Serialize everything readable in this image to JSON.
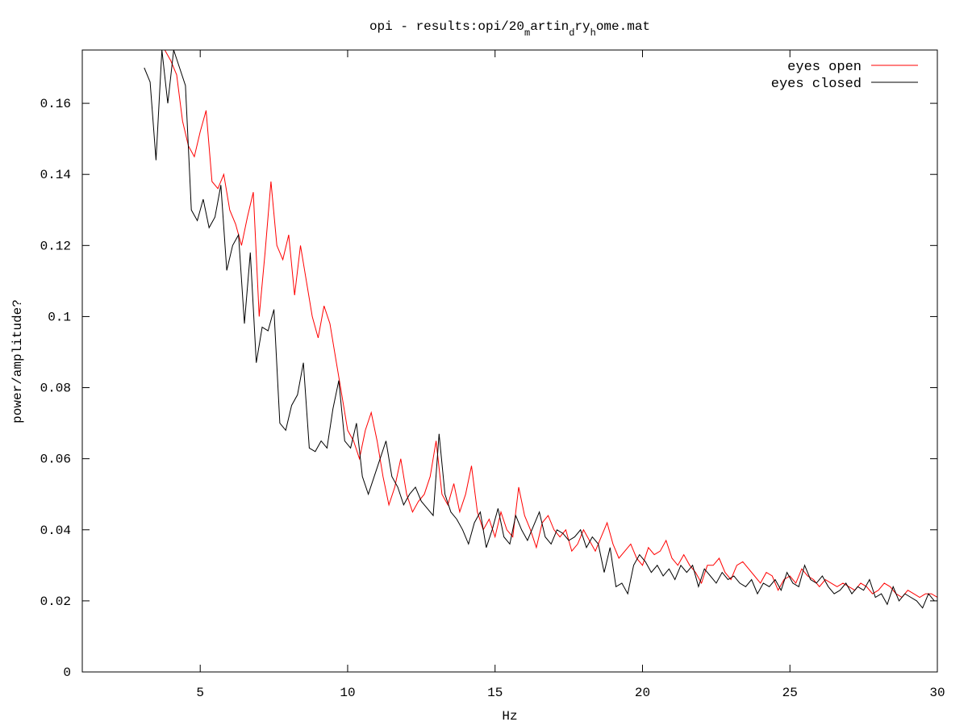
{
  "chart_data": {
    "type": "line",
    "title": "opi - results:opi/20_martin_dry_home.mat",
    "title_parts": {
      "base": "opi - results:opi/20",
      "sub1": "m",
      "mid1": "artin",
      "sub2": "d",
      "mid2": "ry",
      "sub3": "h",
      "tail": "ome.mat"
    },
    "xlabel": "Hz",
    "ylabel": "power/amplitude?",
    "xlim": [
      1,
      30
    ],
    "ylim": [
      0,
      0.175
    ],
    "xticks": [
      5,
      10,
      15,
      20,
      25,
      30
    ],
    "yticks": [
      0,
      0.02,
      0.04,
      0.06,
      0.08,
      0.1,
      0.12,
      0.14,
      0.16
    ],
    "ytick_labels": [
      "0",
      "0.02",
      "0.04",
      "0.06",
      "0.08",
      "0.1",
      "0.12",
      "0.14",
      "0.16"
    ],
    "xtick_labels": [
      "5",
      "10",
      "15",
      "20",
      "25",
      "30"
    ],
    "grid": false,
    "legend_position": "top-right",
    "colors": {
      "eyes_open": "#ff0000",
      "eyes_closed": "#000000"
    },
    "series": [
      {
        "name": "eyes open",
        "color": "#ff0000",
        "x": [
          3.2,
          3.4,
          3.6,
          3.8,
          4.0,
          4.2,
          4.4,
          4.6,
          4.8,
          5.0,
          5.2,
          5.4,
          5.6,
          5.8,
          6.0,
          6.2,
          6.4,
          6.6,
          6.8,
          7.0,
          7.2,
          7.4,
          7.6,
          7.8,
          8.0,
          8.2,
          8.4,
          8.6,
          8.8,
          9.0,
          9.2,
          9.4,
          9.6,
          9.8,
          10.0,
          10.2,
          10.4,
          10.6,
          10.8,
          11.0,
          11.2,
          11.4,
          11.6,
          11.8,
          12.0,
          12.2,
          12.4,
          12.6,
          12.8,
          13.0,
          13.2,
          13.4,
          13.6,
          13.8,
          14.0,
          14.2,
          14.4,
          14.6,
          14.8,
          15.0,
          15.2,
          15.4,
          15.6,
          15.8,
          16.0,
          16.2,
          16.4,
          16.6,
          16.8,
          17.0,
          17.2,
          17.4,
          17.6,
          17.8,
          18.0,
          18.2,
          18.4,
          18.6,
          18.8,
          19.0,
          19.2,
          19.4,
          19.6,
          19.8,
          20.0,
          20.2,
          20.4,
          20.6,
          20.8,
          21.0,
          21.2,
          21.4,
          21.6,
          21.8,
          22.0,
          22.2,
          22.4,
          22.6,
          22.8,
          23.0,
          23.2,
          23.4,
          23.6,
          23.8,
          24.0,
          24.2,
          24.4,
          24.6,
          24.8,
          25.0,
          25.2,
          25.4,
          25.6,
          25.8,
          26.0,
          26.2,
          26.4,
          26.6,
          26.8,
          27.0,
          27.2,
          27.4,
          27.6,
          27.8,
          28.0,
          28.2,
          28.4,
          28.6,
          28.8,
          29.0,
          29.2,
          29.4,
          29.6,
          29.8,
          30.0
        ],
        "values": [
          0.19,
          0.18,
          0.178,
          0.175,
          0.172,
          0.168,
          0.155,
          0.148,
          0.145,
          0.152,
          0.158,
          0.138,
          0.136,
          0.14,
          0.13,
          0.126,
          0.12,
          0.128,
          0.135,
          0.1,
          0.118,
          0.138,
          0.12,
          0.116,
          0.123,
          0.106,
          0.12,
          0.11,
          0.1,
          0.094,
          0.103,
          0.098,
          0.088,
          0.078,
          0.068,
          0.065,
          0.06,
          0.068,
          0.073,
          0.065,
          0.055,
          0.047,
          0.052,
          0.06,
          0.05,
          0.045,
          0.048,
          0.05,
          0.055,
          0.065,
          0.05,
          0.047,
          0.053,
          0.045,
          0.05,
          0.058,
          0.045,
          0.04,
          0.043,
          0.038,
          0.045,
          0.04,
          0.038,
          0.052,
          0.044,
          0.04,
          0.035,
          0.042,
          0.044,
          0.04,
          0.038,
          0.04,
          0.034,
          0.036,
          0.04,
          0.037,
          0.034,
          0.038,
          0.042,
          0.036,
          0.032,
          0.034,
          0.036,
          0.032,
          0.03,
          0.035,
          0.033,
          0.034,
          0.037,
          0.032,
          0.03,
          0.033,
          0.03,
          0.028,
          0.025,
          0.03,
          0.03,
          0.032,
          0.028,
          0.026,
          0.03,
          0.031,
          0.029,
          0.027,
          0.025,
          0.028,
          0.027,
          0.023,
          0.026,
          0.027,
          0.025,
          0.029,
          0.027,
          0.026,
          0.024,
          0.026,
          0.025,
          0.024,
          0.025,
          0.024,
          0.023,
          0.025,
          0.024,
          0.022,
          0.023,
          0.025,
          0.024,
          0.022,
          0.021,
          0.023,
          0.022,
          0.021,
          0.022,
          0.022,
          0.021
        ]
      },
      {
        "name": "eyes closed",
        "color": "#000000",
        "x": [
          3.1,
          3.3,
          3.5,
          3.7,
          3.9,
          4.1,
          4.3,
          4.5,
          4.7,
          4.9,
          5.1,
          5.3,
          5.5,
          5.7,
          5.9,
          6.1,
          6.3,
          6.5,
          6.7,
          6.9,
          7.1,
          7.3,
          7.5,
          7.7,
          7.9,
          8.1,
          8.3,
          8.5,
          8.7,
          8.9,
          9.1,
          9.3,
          9.5,
          9.7,
          9.9,
          10.1,
          10.3,
          10.5,
          10.7,
          10.9,
          11.1,
          11.3,
          11.5,
          11.7,
          11.9,
          12.1,
          12.3,
          12.5,
          12.7,
          12.9,
          13.1,
          13.3,
          13.5,
          13.7,
          13.9,
          14.1,
          14.3,
          14.5,
          14.7,
          14.9,
          15.1,
          15.3,
          15.5,
          15.7,
          15.9,
          16.1,
          16.3,
          16.5,
          16.7,
          16.9,
          17.1,
          17.3,
          17.5,
          17.7,
          17.9,
          18.1,
          18.3,
          18.5,
          18.7,
          18.9,
          19.1,
          19.3,
          19.5,
          19.7,
          19.9,
          20.1,
          20.3,
          20.5,
          20.7,
          20.9,
          21.1,
          21.3,
          21.5,
          21.7,
          21.9,
          22.1,
          22.3,
          22.5,
          22.7,
          22.9,
          23.1,
          23.3,
          23.5,
          23.7,
          23.9,
          24.1,
          24.3,
          24.5,
          24.7,
          24.9,
          25.1,
          25.3,
          25.5,
          25.7,
          25.9,
          26.1,
          26.3,
          26.5,
          26.7,
          26.9,
          27.1,
          27.3,
          27.5,
          27.7,
          27.9,
          28.1,
          28.3,
          28.5,
          28.7,
          28.9,
          29.1,
          29.3,
          29.5,
          29.7,
          29.9
        ],
        "values": [
          0.17,
          0.166,
          0.144,
          0.175,
          0.16,
          0.175,
          0.17,
          0.165,
          0.13,
          0.127,
          0.133,
          0.125,
          0.128,
          0.137,
          0.113,
          0.12,
          0.123,
          0.098,
          0.118,
          0.087,
          0.097,
          0.096,
          0.102,
          0.07,
          0.068,
          0.075,
          0.078,
          0.087,
          0.063,
          0.062,
          0.065,
          0.063,
          0.074,
          0.082,
          0.065,
          0.063,
          0.07,
          0.055,
          0.05,
          0.055,
          0.06,
          0.065,
          0.055,
          0.052,
          0.047,
          0.05,
          0.052,
          0.048,
          0.046,
          0.044,
          0.067,
          0.05,
          0.045,
          0.043,
          0.04,
          0.036,
          0.042,
          0.045,
          0.035,
          0.04,
          0.046,
          0.038,
          0.036,
          0.044,
          0.04,
          0.037,
          0.041,
          0.045,
          0.038,
          0.036,
          0.04,
          0.039,
          0.037,
          0.038,
          0.04,
          0.035,
          0.038,
          0.036,
          0.028,
          0.035,
          0.024,
          0.025,
          0.022,
          0.03,
          0.033,
          0.031,
          0.028,
          0.03,
          0.027,
          0.029,
          0.026,
          0.03,
          0.028,
          0.03,
          0.024,
          0.029,
          0.027,
          0.025,
          0.028,
          0.026,
          0.027,
          0.025,
          0.024,
          0.026,
          0.022,
          0.025,
          0.024,
          0.026,
          0.023,
          0.028,
          0.025,
          0.024,
          0.03,
          0.026,
          0.025,
          0.027,
          0.024,
          0.022,
          0.023,
          0.025,
          0.022,
          0.024,
          0.023,
          0.026,
          0.021,
          0.022,
          0.019,
          0.024,
          0.02,
          0.022,
          0.021,
          0.02,
          0.018,
          0.022,
          0.02
        ]
      }
    ]
  }
}
